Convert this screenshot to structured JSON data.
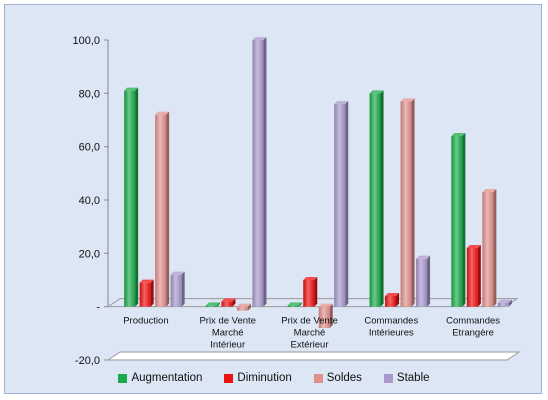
{
  "chart_data": {
    "type": "bar",
    "categories": [
      [
        "Production"
      ],
      [
        "Prix de Vente",
        "Marché",
        "Intérieur"
      ],
      [
        "Prix de Vente",
        "Marché",
        "Extérieur"
      ],
      [
        "Commandes",
        "Intérieures"
      ],
      [
        "Commandes",
        "Etrangère"
      ]
    ],
    "series": [
      {
        "name": "Augmentation",
        "color": "#1aaa4a",
        "values": [
          81,
          0.5,
          0.5,
          80,
          64
        ]
      },
      {
        "name": "Diminution",
        "color": "#ee1111",
        "values": [
          9,
          2,
          10,
          4,
          22
        ]
      },
      {
        "name": "Soldes",
        "color": "#e2908c",
        "values": [
          72,
          -1.5,
          -8,
          77,
          43
        ]
      },
      {
        "name": "Stable",
        "color": "#a898cc",
        "values": [
          12,
          100,
          76,
          18,
          1.5
        ]
      }
    ],
    "ylim": [
      -20,
      100
    ],
    "y_ticks": [
      -20,
      0,
      20,
      40,
      60,
      80,
      100
    ],
    "y_tick_labels": [
      "-20,0",
      "-",
      "20,0",
      "40,0",
      "60,0",
      "80,0",
      "100,0"
    ],
    "title": "",
    "xlabel": "",
    "ylabel": "",
    "legend_position": "bottom",
    "grid": false
  }
}
